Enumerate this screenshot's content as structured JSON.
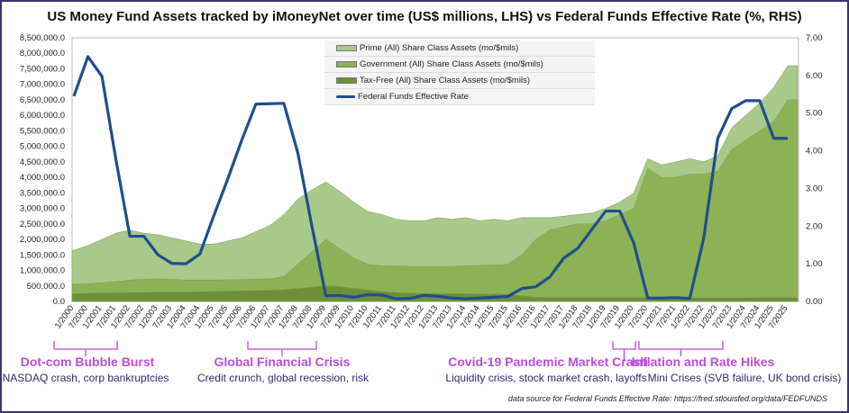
{
  "chart_data": {
    "type": "area",
    "title": "US Money Fund Assets tracked by iMoneyNet over time (US$ millions, LHS) vs Federal Funds Effective Rate (%, RHS)",
    "stacked": true,
    "grid": false,
    "legend_position": "top-center",
    "y_left": {
      "lim": [
        0,
        8500000
      ],
      "ticks": [
        "0.0",
        "500,000.0",
        "1,000,000.0",
        "1,500,000.0",
        "2,000,000.0",
        "2,500,000.0",
        "3,000,000.0",
        "3,500,000.0",
        "4,000,000.0",
        "4,500,000.0",
        "5,000,000.0",
        "5,500,000.0",
        "6,000,000.0",
        "6,500,000.0",
        "7,000,000.0",
        "7,500,000.0",
        "8,000,000.0",
        "8,500,000.0"
      ]
    },
    "y_right": {
      "lim": [
        0,
        7
      ],
      "ticks": [
        "0.00",
        "1.00",
        "2.00",
        "3.00",
        "4.00",
        "5.00",
        "6.00",
        "7.00"
      ]
    },
    "categories": [
      "1/2000",
      "7/2000",
      "1/2001",
      "7/2001",
      "1/2002",
      "7/2002",
      "1/2003",
      "7/2003",
      "1/2004",
      "7/2004",
      "1/2005",
      "7/2005",
      "1/2006",
      "7/2006",
      "1/2007",
      "7/2007",
      "1/2008",
      "7/2008",
      "1/2009",
      "7/2009",
      "1/2010",
      "7/2010",
      "1/2011",
      "7/2011",
      "1/2012",
      "7/2012",
      "1/2013",
      "7/2013",
      "1/2014",
      "7/2014",
      "1/2015",
      "7/2015",
      "1/2016",
      "7/2016",
      "1/2017",
      "7/2017",
      "1/2018",
      "7/2018",
      "1/2019",
      "7/2019",
      "1/2020",
      "7/2020",
      "1/2021",
      "7/2021",
      "1/2022",
      "7/2022",
      "1/2023",
      "7/2023",
      "1/2024",
      "7/2024",
      "1/2025",
      "7/2025"
    ],
    "series": [
      {
        "name": "Tax-Free (All) Share Class Assets (mo/$mils)",
        "axis": "left",
        "color": "#6e8f3a",
        "values": [
          250000,
          260000,
          270000,
          280000,
          290000,
          290000,
          300000,
          300000,
          300000,
          310000,
          320000,
          330000,
          340000,
          350000,
          360000,
          380000,
          420000,
          460000,
          500000,
          480000,
          420000,
          370000,
          320000,
          290000,
          270000,
          260000,
          250000,
          250000,
          250000,
          240000,
          240000,
          230000,
          180000,
          140000,
          130000,
          130000,
          130000,
          130000,
          130000,
          130000,
          130000,
          130000,
          120000,
          120000,
          120000,
          120000,
          120000,
          120000,
          120000,
          130000,
          130000,
          130000
        ]
      },
      {
        "name": "Government (All) Share Class Assets (mo/$mils)",
        "axis": "left",
        "color": "#8db255",
        "values": [
          300000,
          310000,
          330000,
          360000,
          400000,
          420000,
          430000,
          410000,
          390000,
          380000,
          370000,
          370000,
          360000,
          370000,
          370000,
          420000,
          780000,
          1140000,
          1500000,
          1220000,
          980000,
          830000,
          830000,
          850000,
          860000,
          870000,
          880000,
          880000,
          900000,
          920000,
          930000,
          970000,
          1320000,
          1860000,
          2170000,
          2270000,
          2370000,
          2370000,
          2470000,
          2670000,
          2870000,
          4170000,
          3880000,
          3880000,
          3980000,
          3980000,
          4080000,
          4780000,
          5080000,
          5370000,
          5670000,
          6370000
        ]
      },
      {
        "name": "Prime (All) Share Class Assets (mo/$mils)",
        "axis": "left",
        "color": "#a9c98a",
        "values": [
          1100000,
          1230000,
          1400000,
          1560000,
          1610000,
          1490000,
          1420000,
          1340000,
          1260000,
          1160000,
          1160000,
          1250000,
          1350000,
          1530000,
          1720000,
          2000000,
          2100000,
          2000000,
          1850000,
          1850000,
          1800000,
          1700000,
          1650000,
          1510000,
          1470000,
          1470000,
          1570000,
          1520000,
          1550000,
          1440000,
          1480000,
          1400000,
          1200000,
          700000,
          400000,
          350000,
          300000,
          350000,
          400000,
          400000,
          500000,
          300000,
          400000,
          500000,
          500000,
          400000,
          500000,
          700000,
          800000,
          900000,
          1100000,
          1100000
        ]
      },
      {
        "name": "Federal Funds Effective Rate",
        "axis": "right",
        "color": "#1f4e8c",
        "values": [
          5.45,
          6.5,
          5.98,
          3.77,
          1.73,
          1.73,
          1.24,
          1.01,
          1.0,
          1.26,
          2.28,
          3.26,
          4.29,
          5.24,
          5.25,
          5.26,
          3.94,
          2.01,
          0.15,
          0.16,
          0.11,
          0.18,
          0.17,
          0.07,
          0.08,
          0.16,
          0.14,
          0.09,
          0.07,
          0.09,
          0.11,
          0.13,
          0.34,
          0.39,
          0.65,
          1.15,
          1.41,
          1.91,
          2.4,
          2.4,
          1.55,
          0.09,
          0.09,
          0.1,
          0.08,
          1.68,
          4.33,
          5.12,
          5.33,
          5.33,
          4.33,
          4.33
        ]
      }
    ]
  },
  "annotations": [
    {
      "title": "Dot-com Bubble Burst",
      "subtitle": "NASDAQ crash, corp bankruptcies"
    },
    {
      "title": "Global Financial Crisis",
      "subtitle": "Credit crunch, global recession, risk"
    },
    {
      "title": "Covid-19 Pandemic Market Crash",
      "subtitle": "Liquidity crisis, stock market crash, layoffs"
    },
    {
      "title": "Inflation and Rate Hikes",
      "subtitle": "Mini Crises (SVB failure, UK bond crisis)"
    }
  ],
  "source_note": "data source for Federal Funds Effective Rate:  https://fred.stlouisfed.org/data/FEDFUNDS",
  "colors": {
    "annotation": "#b84fd8",
    "annotation_text": "#2d2a6e",
    "frame": "#3b3470"
  }
}
